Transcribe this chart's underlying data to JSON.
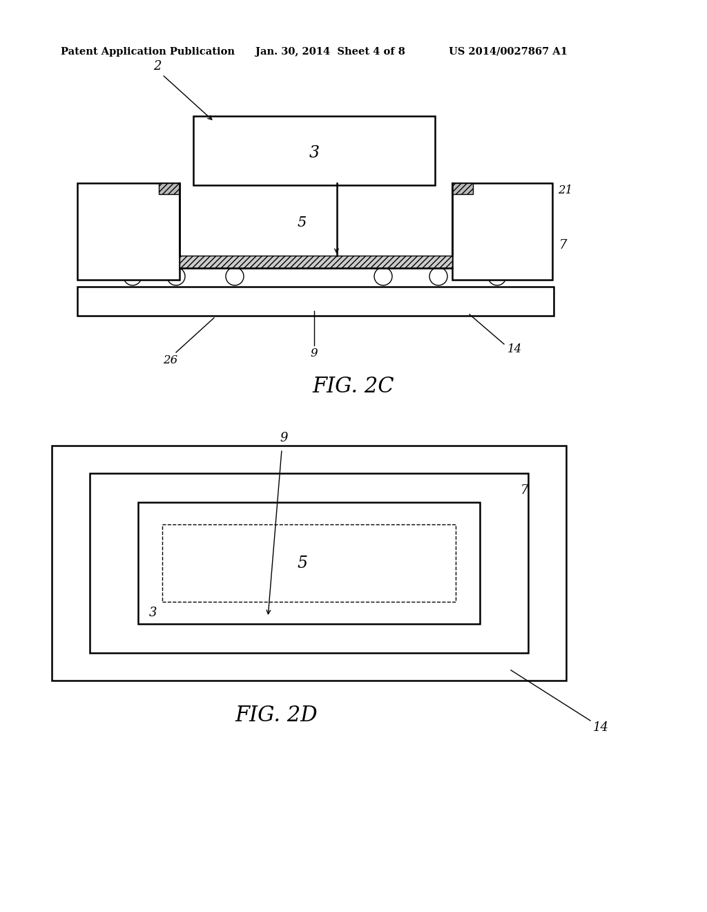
{
  "bg_color": "#ffffff",
  "header_left": "Patent Application Publication",
  "header_mid": "Jan. 30, 2014  Sheet 4 of 8",
  "header_right": "US 2014/0027867 A1",
  "fig2c_caption": "FIG. 2C",
  "fig2d_caption": "FIG. 2D",
  "lc": "#000000"
}
